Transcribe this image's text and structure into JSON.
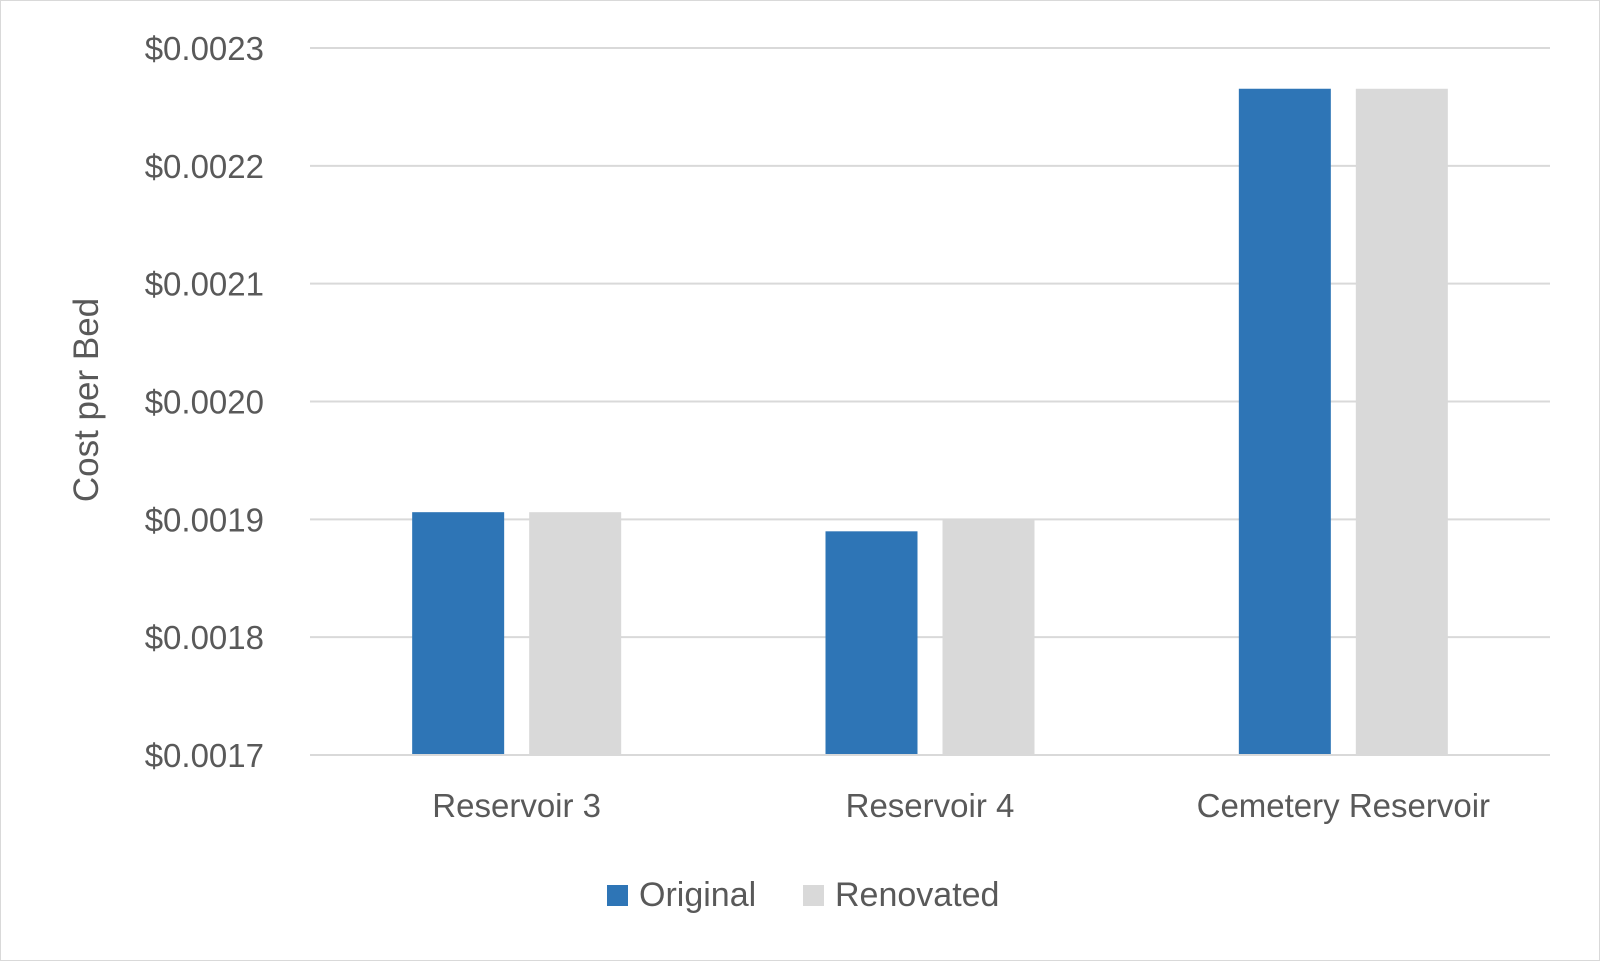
{
  "chart_data": {
    "type": "bar",
    "categories": [
      "Reservoir 3",
      "Reservoir 4",
      "Cemetery Reservoir"
    ],
    "series": [
      {
        "name": "Original",
        "color": "#2e75b6",
        "values": [
          0.00190607,
          0.00188983,
          0.00226542
        ]
      },
      {
        "name": "Renovated",
        "color": "#d9d9d9",
        "values": [
          0.00190607,
          0.0019,
          0.00226542
        ]
      }
    ],
    "xlabel": "",
    "ylabel": "Cost per Bed",
    "ylim": [
      0.0017,
      0.0023
    ],
    "yticks": [
      {
        "value": 0.0017,
        "label": "$0.0017"
      },
      {
        "value": 0.0018,
        "label": "$0.0018"
      },
      {
        "value": 0.0019,
        "label": "$0.0019"
      },
      {
        "value": 0.002,
        "label": "$0.0020"
      },
      {
        "value": 0.0021,
        "label": "$0.0021"
      },
      {
        "value": 0.0022,
        "label": "$0.0022"
      },
      {
        "value": 0.0023,
        "label": "$0.0023"
      }
    ],
    "grid": true,
    "legend_position": "bottom"
  }
}
